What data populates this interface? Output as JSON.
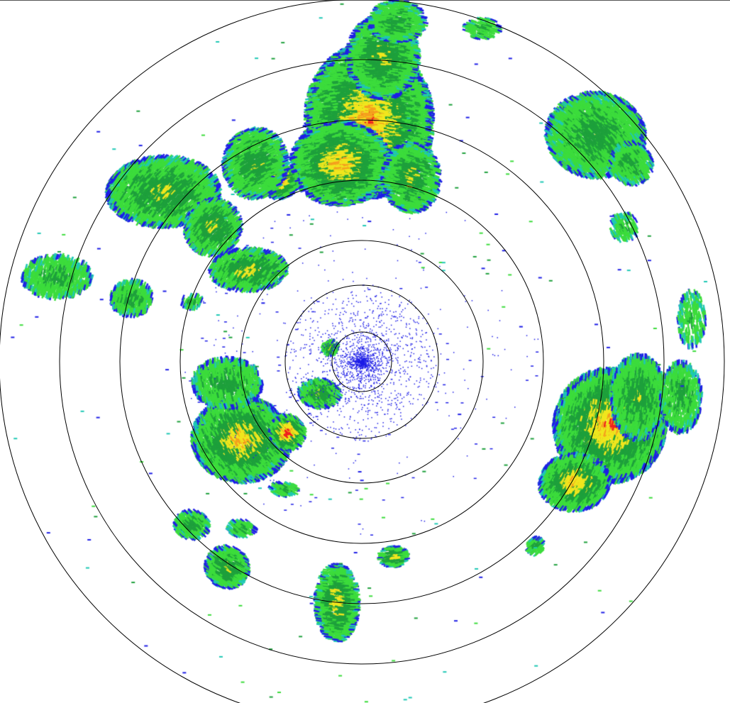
{
  "radar": {
    "range_ring_count": 7,
    "colors": {
      "weak_blue": "#1e1ee6",
      "cyan": "#1ec8b4",
      "light_green": "#3cdc3c",
      "green": "#1ea03c",
      "yellow": "#f0e61e",
      "orange": "#f5a01e",
      "red": "#f01e1e",
      "ring": "#000000",
      "background": "#ffffff"
    }
  }
}
